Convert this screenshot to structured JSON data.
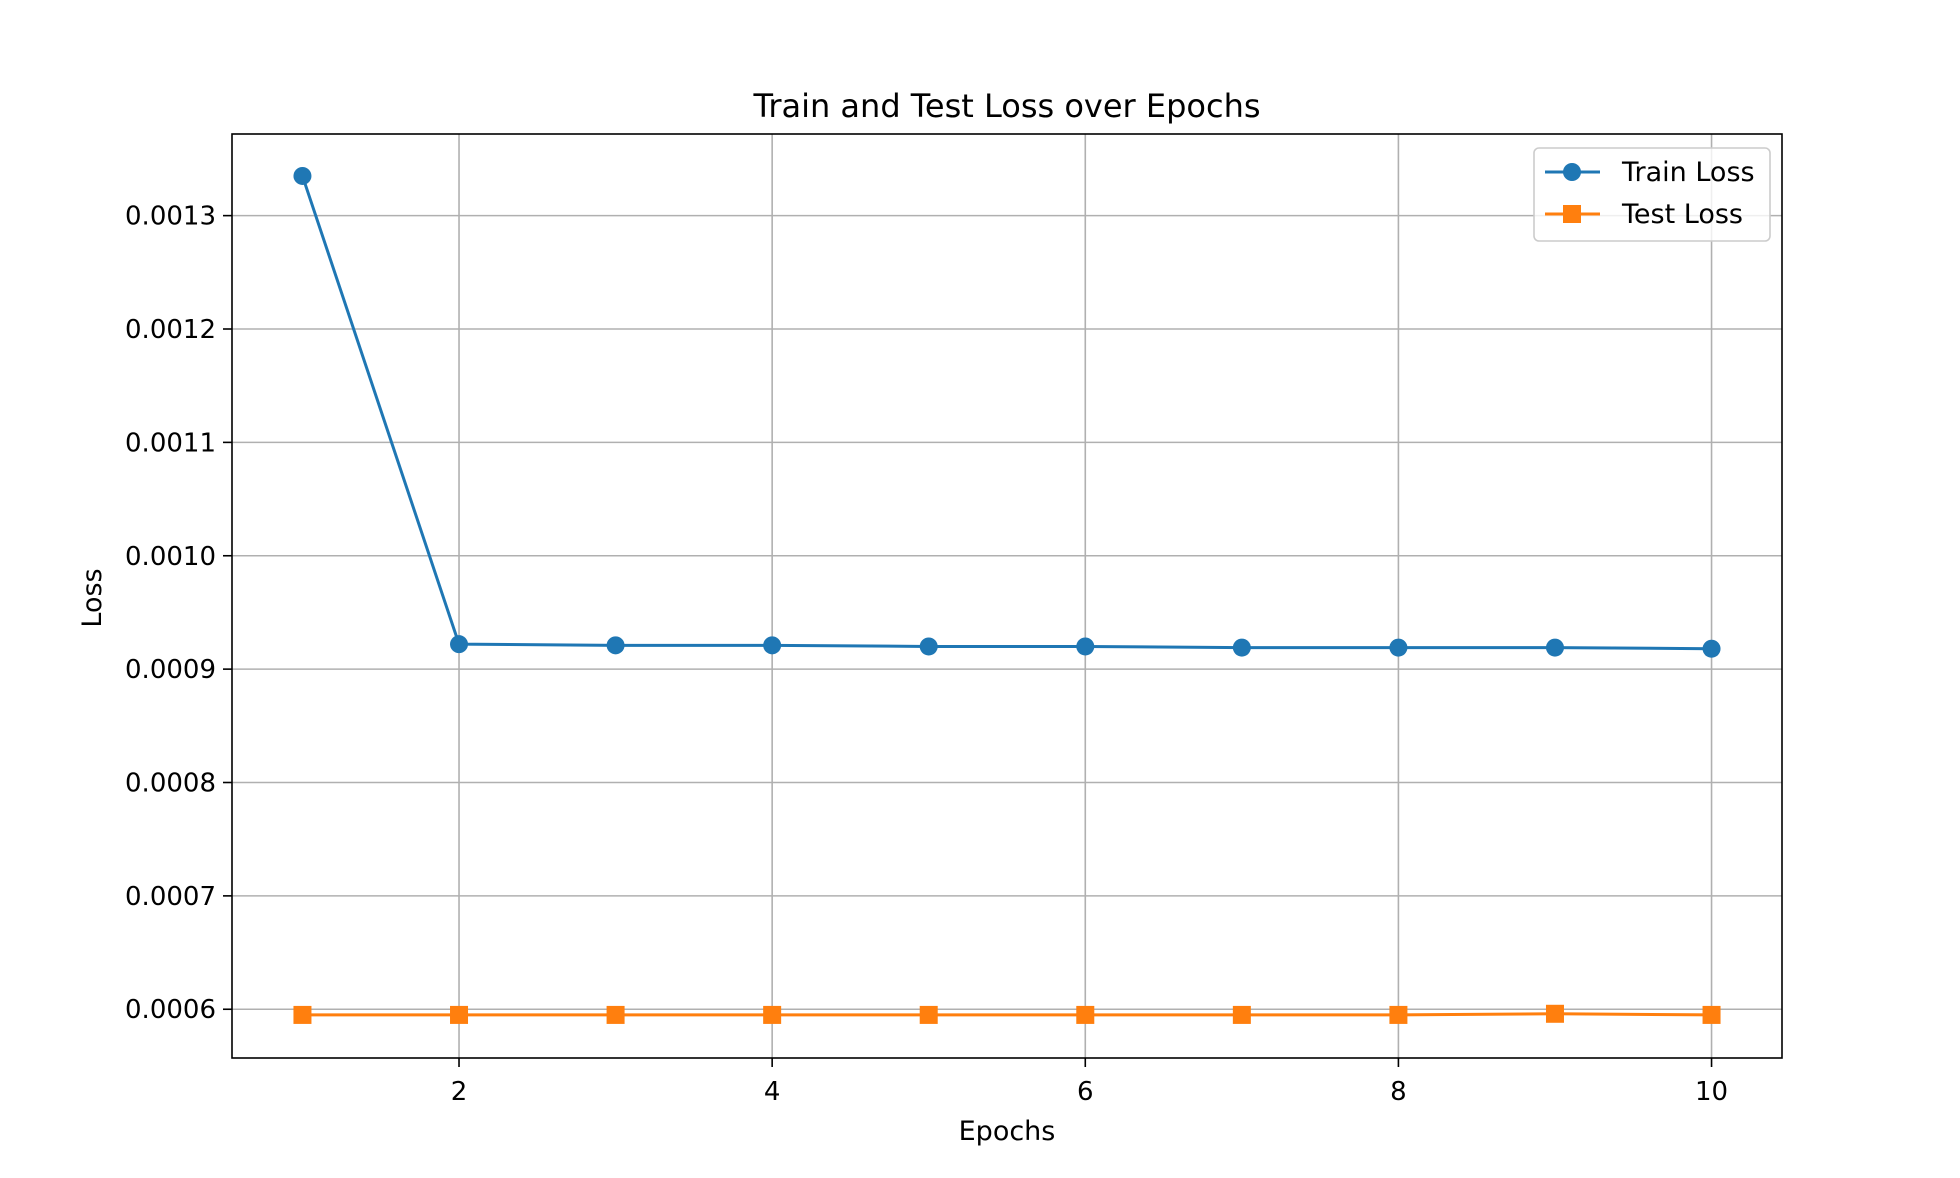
{
  "chart_data": {
    "type": "line",
    "title": "Train and Test Loss over Epochs",
    "xlabel": "Epochs",
    "ylabel": "Loss",
    "x": [
      1,
      2,
      3,
      4,
      5,
      6,
      7,
      8,
      9,
      10
    ],
    "xlim": [
      0.55,
      10.45
    ],
    "ylim": [
      0.000557,
      0.001372
    ],
    "xticks": [
      2,
      4,
      6,
      8,
      10
    ],
    "xtick_labels": [
      "2",
      "4",
      "6",
      "8",
      "10"
    ],
    "yticks": [
      0.0006,
      0.0007,
      0.0008,
      0.0009,
      0.001,
      0.0011,
      0.0012,
      0.0013
    ],
    "ytick_labels": [
      "0.0006",
      "0.0007",
      "0.0008",
      "0.0009",
      "0.0010",
      "0.0011",
      "0.0012",
      "0.0013"
    ],
    "grid": true,
    "legend_position": "top-right",
    "series": [
      {
        "name": "Train Loss",
        "color": "#1f77b4",
        "marker": "circle",
        "values": [
          0.001335,
          0.000922,
          0.000921,
          0.000921,
          0.00092,
          0.00092,
          0.000919,
          0.000919,
          0.000919,
          0.000918
        ]
      },
      {
        "name": "Test Loss",
        "color": "#ff7f0e",
        "marker": "square",
        "values": [
          0.000595,
          0.000595,
          0.000595,
          0.000595,
          0.000595,
          0.000595,
          0.000595,
          0.000595,
          0.000596,
          0.000595
        ]
      }
    ]
  }
}
